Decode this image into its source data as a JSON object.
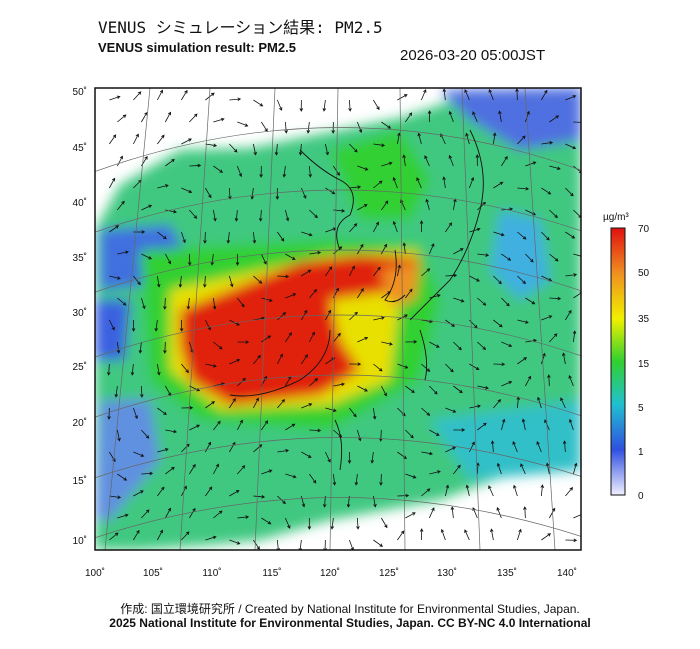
{
  "title_ja": "VENUS シミュレーション結果: PM2.5",
  "title_en": "VENUS simulation result: PM2.5",
  "timestamp": "2026-03-20 05:00JST",
  "map": {
    "lon_ticks": [
      "100˚",
      "105˚",
      "110˚",
      "115˚",
      "120˚",
      "125˚",
      "130˚",
      "135˚",
      "140˚"
    ],
    "lat_ticks": [
      "50˚",
      "45˚",
      "40˚",
      "35˚",
      "30˚",
      "25˚",
      "20˚",
      "15˚",
      "10˚"
    ]
  },
  "colorbar": {
    "unit": "µg/m³",
    "ticks": [
      "70",
      "50",
      "35",
      "15",
      "5",
      "1",
      "0"
    ],
    "colors": [
      "#f0f0ff",
      "#3050e0",
      "#20c0d0",
      "#30d030",
      "#f0f000",
      "#f09020",
      "#e01010"
    ]
  },
  "credit_line1": "作成: 国立環境研究所 / Created by National Institute for Environmental Studies, Japan.",
  "credit_line2": "2025 National Institute for Environmental Studies, Japan. CC BY-NC 4.0 International"
}
